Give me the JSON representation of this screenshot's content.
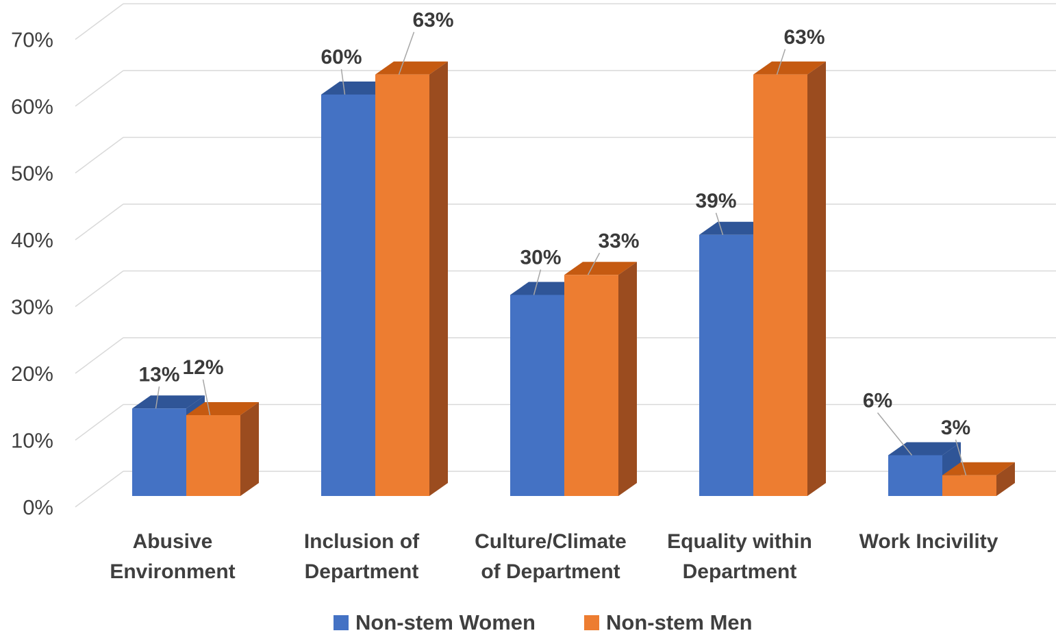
{
  "chart_data": {
    "type": "bar",
    "categories": [
      [
        "Abusive",
        "Environment"
      ],
      [
        "Inclusion of",
        "Department"
      ],
      [
        "Culture/Climate",
        "of Department"
      ],
      [
        "Equality within",
        "Department"
      ],
      [
        "Work Incivility"
      ]
    ],
    "series": [
      {
        "name": "Non-stem Women",
        "values": [
          13,
          60,
          30,
          39,
          6
        ],
        "labels": [
          "13%",
          "60%",
          "30%",
          "39%",
          "6%"
        ],
        "color": "#4472c4",
        "top_color": "#2f5597",
        "side_color": "#2f5597"
      },
      {
        "name": "Non-stem Men",
        "values": [
          12,
          63,
          33,
          63,
          3
        ],
        "labels": [
          "12%",
          "63%",
          "33%",
          "63%",
          "3%"
        ],
        "color": "#ed7d31",
        "top_color": "#c55a11",
        "side_color": "#9b4c1f"
      }
    ],
    "y_ticks": [
      "0%",
      "10%",
      "20%",
      "30%",
      "40%",
      "50%",
      "60%",
      "70%"
    ],
    "ylim": [
      0,
      70
    ],
    "grid": true,
    "legend_position": "bottom",
    "style": "3d-clustered-column"
  }
}
